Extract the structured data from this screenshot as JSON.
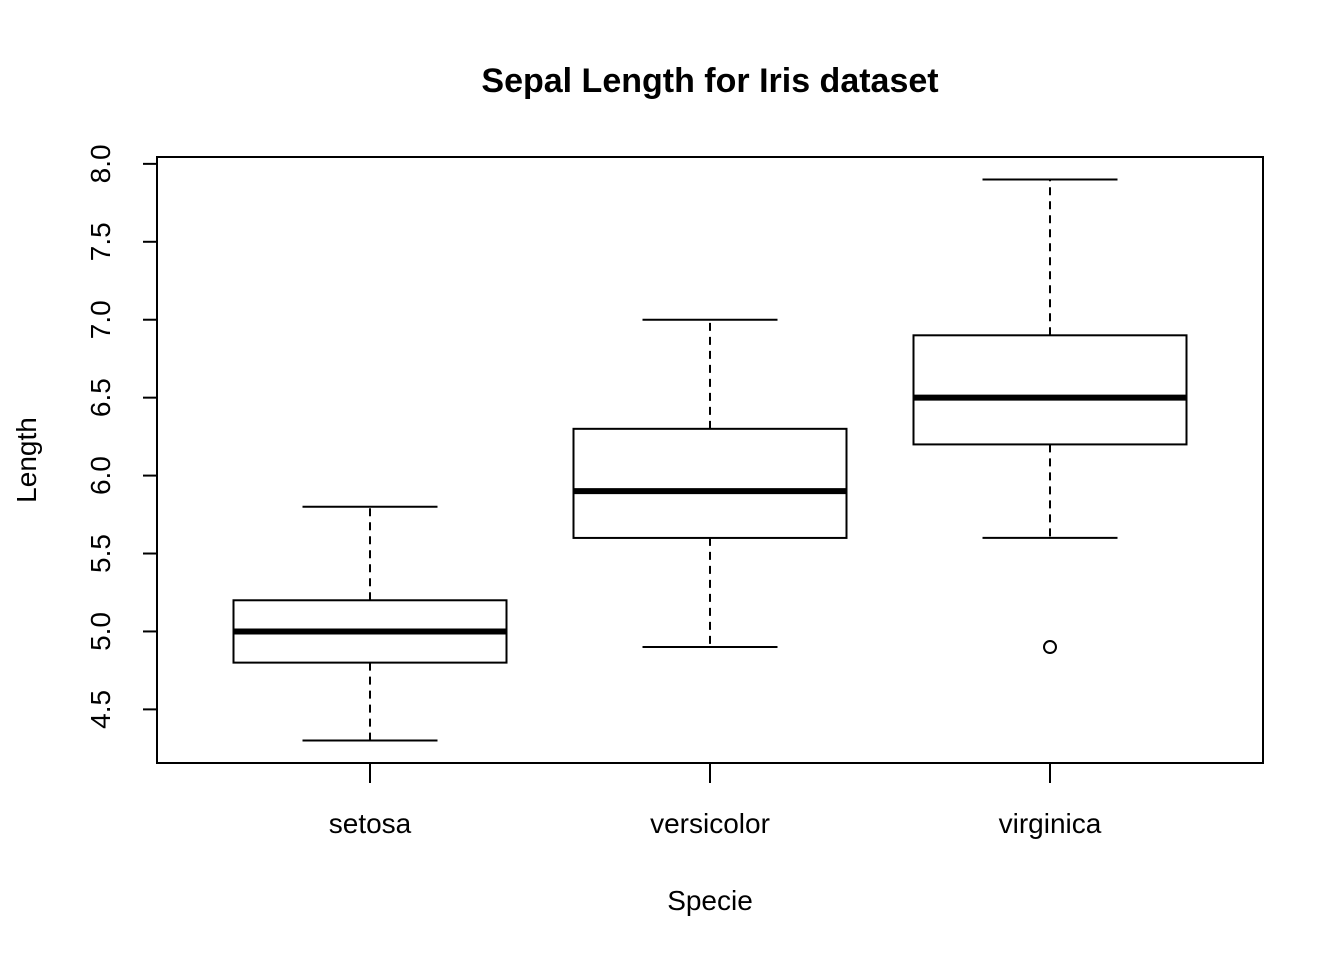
{
  "chart_data": {
    "type": "box",
    "title": "Sepal Length for Iris dataset",
    "x_label": "Specie",
    "y_label": "Length",
    "categories": [
      "setosa",
      "versicolor",
      "virginica"
    ],
    "min": [
      4.3,
      4.9,
      5.6
    ],
    "q1": [
      4.8,
      5.6,
      6.2
    ],
    "median": [
      5.0,
      5.9,
      6.5
    ],
    "q3": [
      5.2,
      6.3,
      6.9
    ],
    "max": [
      5.8,
      7.0,
      7.9
    ],
    "outliers": [
      [],
      [],
      [
        4.9
      ]
    ],
    "color": "#000000",
    "ylim": [
      4.156,
      8.044
    ],
    "yticks": [
      4.5,
      {
        "value": 5,
        "label": "5.0"
      },
      5.5,
      {
        "value": 6,
        "label": "6.0"
      },
      6.5,
      {
        "value": 7,
        "label": "7.0"
      },
      7.5,
      {
        "value": 8,
        "label": "8.0"
      }
    ]
  }
}
